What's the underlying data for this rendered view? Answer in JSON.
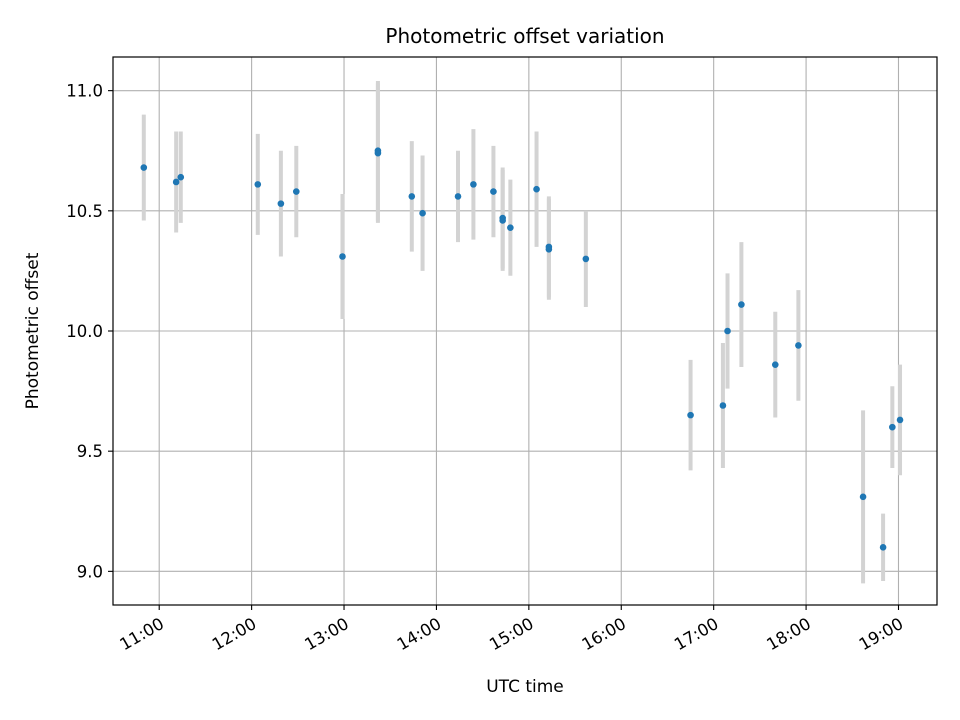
{
  "chart_data": {
    "type": "scatter",
    "title": "Photometric offset variation",
    "xlabel": "UTC time",
    "ylabel": "Photometric offset",
    "grid": true,
    "legend": "none",
    "xlim": [
      "10:30",
      "19:25"
    ],
    "ylim": [
      8.86,
      11.14
    ],
    "x_ticks": [
      "11:00",
      "12:00",
      "13:00",
      "14:00",
      "15:00",
      "16:00",
      "17:00",
      "18:00",
      "19:00"
    ],
    "y_ticks": [
      "9.0",
      "9.5",
      "10.0",
      "10.5",
      "11.0"
    ],
    "colors": {
      "point": "#1f77b4",
      "errorbar": "#d3d3d3",
      "grid": "#b0b0b0"
    },
    "points": [
      {
        "x": "10:50",
        "y": 10.68,
        "err": 0.22
      },
      {
        "x": "11:11",
        "y": 10.62,
        "err": 0.21
      },
      {
        "x": "11:14",
        "y": 10.64,
        "err": 0.19
      },
      {
        "x": "12:04",
        "y": 10.61,
        "err": 0.21
      },
      {
        "x": "12:19",
        "y": 10.53,
        "err": 0.22
      },
      {
        "x": "12:29",
        "y": 10.58,
        "err": 0.19
      },
      {
        "x": "12:59",
        "y": 10.31,
        "err": 0.26
      },
      {
        "x": "13:22",
        "y": 10.75,
        "err": 0.29
      },
      {
        "x": "13:22",
        "y": 10.74,
        "err": 0.29
      },
      {
        "x": "13:44",
        "y": 10.56,
        "err": 0.23
      },
      {
        "x": "13:51",
        "y": 10.49,
        "err": 0.24
      },
      {
        "x": "14:14",
        "y": 10.56,
        "err": 0.19
      },
      {
        "x": "14:24",
        "y": 10.61,
        "err": 0.23
      },
      {
        "x": "14:37",
        "y": 10.58,
        "err": 0.19
      },
      {
        "x": "14:43",
        "y": 10.46,
        "err": 0.21
      },
      {
        "x": "14:43",
        "y": 10.47,
        "err": 0.21
      },
      {
        "x": "14:48",
        "y": 10.43,
        "err": 0.2
      },
      {
        "x": "15:05",
        "y": 10.59,
        "err": 0.24
      },
      {
        "x": "15:13",
        "y": 10.35,
        "err": 0.21
      },
      {
        "x": "15:13",
        "y": 10.34,
        "err": 0.21
      },
      {
        "x": "15:37",
        "y": 10.3,
        "err": 0.2
      },
      {
        "x": "16:45",
        "y": 9.65,
        "err": 0.23
      },
      {
        "x": "17:06",
        "y": 9.69,
        "err": 0.26
      },
      {
        "x": "17:09",
        "y": 10.0,
        "err": 0.24
      },
      {
        "x": "17:18",
        "y": 10.11,
        "err": 0.26
      },
      {
        "x": "17:40",
        "y": 9.86,
        "err": 0.22
      },
      {
        "x": "17:55",
        "y": 9.94,
        "err": 0.23
      },
      {
        "x": "18:37",
        "y": 9.31,
        "err": 0.36
      },
      {
        "x": "18:50",
        "y": 9.1,
        "err": 0.14
      },
      {
        "x": "18:56",
        "y": 9.6,
        "err": 0.17
      },
      {
        "x": "19:01",
        "y": 9.63,
        "err": 0.23
      }
    ]
  }
}
